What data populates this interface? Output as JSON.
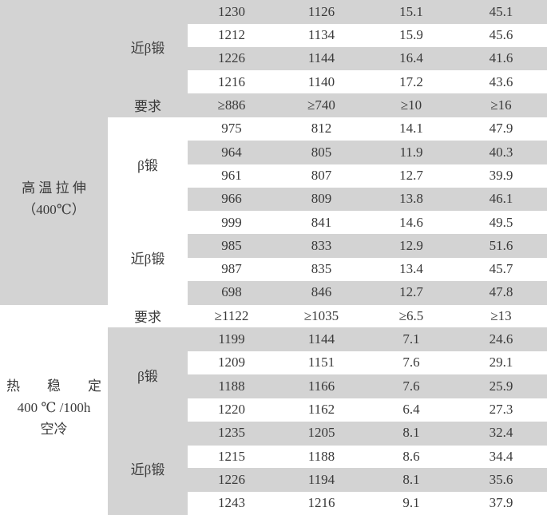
{
  "table": {
    "groups": [
      {
        "label_lines": [],
        "sub": [
          {
            "label": "近β锻",
            "rows": [
              [
                "1230",
                "1126",
                "15.1",
                "45.1"
              ],
              [
                "1212",
                "1134",
                "15.9",
                "45.6"
              ],
              [
                "1226",
                "1144",
                "16.4",
                "41.6"
              ],
              [
                "1216",
                "1140",
                "17.2",
                "43.6"
              ]
            ]
          },
          {
            "label": "要求",
            "rows": [
              [
                "≥886",
                "≥740",
                "≥10",
                "≥16"
              ]
            ]
          }
        ]
      },
      {
        "label_lines": [
          "高 温 拉 伸",
          "（400℃）"
        ],
        "sub": [
          {
            "label": "β锻",
            "rows": [
              [
                "975",
                "812",
                "14.1",
                "47.9"
              ],
              [
                "964",
                "805",
                "11.9",
                "40.3"
              ],
              [
                "961",
                "807",
                "12.7",
                "39.9"
              ],
              [
                "966",
                "809",
                "13.8",
                "46.1"
              ]
            ]
          },
          {
            "label": "近β锻",
            "rows": [
              [
                "999",
                "841",
                "14.6",
                "49.5"
              ],
              [
                "985",
                "833",
                "12.9",
                "51.6"
              ],
              [
                "987",
                "835",
                "13.4",
                "45.7"
              ],
              [
                "698",
                "846",
                "12.7",
                "47.8"
              ]
            ]
          },
          {
            "label": "要求",
            "rows": [
              [
                "≥1122",
                "≥1035",
                "≥6.5",
                "≥13"
              ]
            ]
          }
        ]
      },
      {
        "label_lines": [
          "热　　稳　　定",
          "400 ℃ /100h",
          "空冷"
        ],
        "sub": [
          {
            "label": "β锻",
            "rows": [
              [
                "1199",
                "1144",
                "7.1",
                "24.6"
              ],
              [
                "1209",
                "1151",
                "7.6",
                "29.1"
              ],
              [
                "1188",
                "1166",
                "7.6",
                "25.9"
              ],
              [
                "1220",
                "1162",
                "6.4",
                "27.3"
              ]
            ]
          },
          {
            "label": "近β锻",
            "rows": [
              [
                "1235",
                "1205",
                "8.1",
                "32.4"
              ],
              [
                "1215",
                "1188",
                "8.6",
                "34.4"
              ],
              [
                "1226",
                "1194",
                "8.1",
                "35.6"
              ],
              [
                "1243",
                "1216",
                "9.1",
                "37.9"
              ]
            ]
          }
        ]
      }
    ],
    "colors": {
      "shade": "#d3d3d3",
      "text": "#3a3a3a"
    }
  }
}
